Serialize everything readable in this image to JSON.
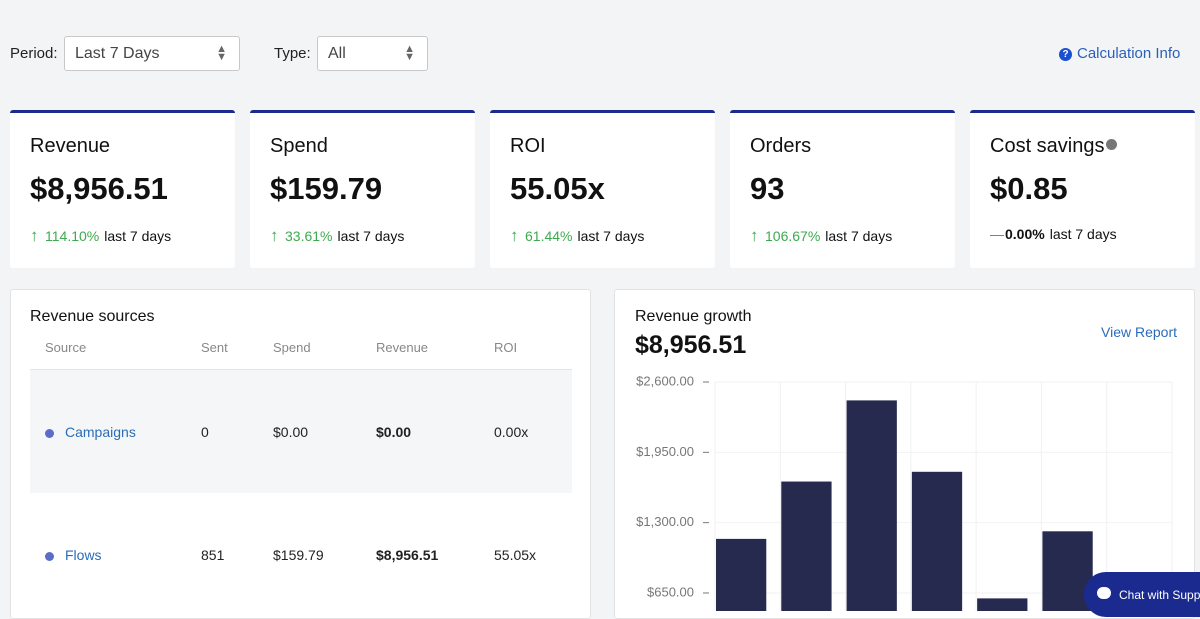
{
  "filters": {
    "period_label": "Period:",
    "period_value": "Last 7 Days",
    "type_label": "Type:",
    "type_value": "All",
    "calculation_info": "Calculation Info"
  },
  "kpis": [
    {
      "title": "Revenue",
      "value": "$8,956.51",
      "change": "114.10%",
      "period": "last 7 days",
      "trend": "up"
    },
    {
      "title": "Spend",
      "value": "$159.79",
      "change": "33.61%",
      "period": "last 7 days",
      "trend": "up"
    },
    {
      "title": "ROI",
      "value": "55.05x",
      "change": "61.44%",
      "period": "last 7 days",
      "trend": "up"
    },
    {
      "title": "Orders",
      "value": "93",
      "change": "106.67%",
      "period": "last 7 days",
      "trend": "up"
    },
    {
      "title": "Cost savings",
      "value": "$0.85",
      "change": "0.00%",
      "period": "last 7 days",
      "trend": "flat",
      "info": true
    }
  ],
  "revenue_sources": {
    "title": "Revenue sources",
    "columns": [
      "Source",
      "Sent",
      "Spend",
      "Revenue",
      "ROI"
    ],
    "rows": [
      [
        "Campaigns",
        "0",
        "$0.00",
        "$0.00",
        "0.00x"
      ],
      [
        "Flows",
        "851",
        "$159.79",
        "$8,956.51",
        "55.05x"
      ]
    ]
  },
  "chart_data": {
    "type": "bar",
    "title": "Revenue growth",
    "subtitle": "$8,956.51",
    "link": "View Report",
    "values": [
      1150,
      1680,
      2430,
      1770,
      600,
      1220
    ],
    "color": "#272a4f",
    "ylim": [
      0,
      2600
    ],
    "yticks": [
      {
        "value": 650,
        "label": "$650.00"
      },
      {
        "value": 1300,
        "label": "$1,300.00"
      },
      {
        "value": 1950,
        "label": "$1,950.00"
      },
      {
        "value": 2600,
        "label": "$2,600.00"
      }
    ]
  },
  "chat": "Chat with Support"
}
